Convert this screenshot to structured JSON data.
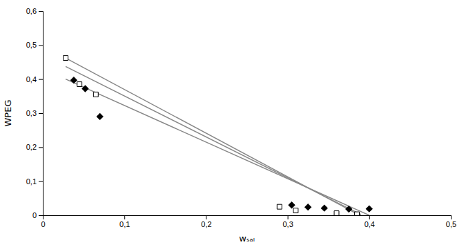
{
  "chart_data": {
    "type": "line",
    "xlabel": "wₛₐₗ",
    "ylabel": "WPEG",
    "xlim": [
      0,
      0.5
    ],
    "ylim": [
      0,
      0.6
    ],
    "xticks": [
      0,
      {
        "value": 0.1,
        "label": "0,1"
      },
      {
        "value": 0.2,
        "label": "0,2"
      },
      {
        "value": 0.3,
        "label": "0,3"
      },
      {
        "value": 0.4,
        "label": "0,4"
      },
      {
        "value": 0.5,
        "label": "0,5"
      }
    ],
    "yticks": [
      0,
      {
        "value": 0.1,
        "label": "0,1"
      },
      {
        "value": 0.2,
        "label": "0,2"
      },
      {
        "value": 0.3,
        "label": "0,3"
      },
      {
        "value": 0.4,
        "label": "0,4"
      },
      {
        "value": 0.5,
        "label": "0,5"
      },
      {
        "value": 0.6,
        "label": "0,6"
      }
    ],
    "grid": false,
    "series": [
      {
        "type": "line",
        "color": "#888888",
        "x": [
          0.028,
          0.385
        ],
        "values": [
          0.462,
          0.004
        ]
      },
      {
        "type": "line",
        "color": "#888888",
        "x": [
          0.028,
          0.39
        ],
        "values": [
          0.437,
          0.002
        ]
      },
      {
        "type": "line",
        "color": "#888888",
        "x": [
          0.028,
          0.4
        ],
        "values": [
          0.4,
          0.0
        ]
      },
      {
        "type": "scatter",
        "marker": "square-open",
        "color": "black",
        "x": [
          0.028,
          0.045,
          0.065,
          0.29,
          0.31,
          0.36,
          0.385
        ],
        "values": [
          0.462,
          0.385,
          0.355,
          0.025,
          0.014,
          0.006,
          0.003
        ]
      },
      {
        "type": "scatter",
        "marker": "diamond",
        "color": "black",
        "x": [
          0.038,
          0.052,
          0.07,
          0.305,
          0.325,
          0.345,
          0.375,
          0.4
        ],
        "values": [
          0.397,
          0.372,
          0.29,
          0.03,
          0.024,
          0.021,
          0.018,
          0.019
        ]
      }
    ]
  }
}
